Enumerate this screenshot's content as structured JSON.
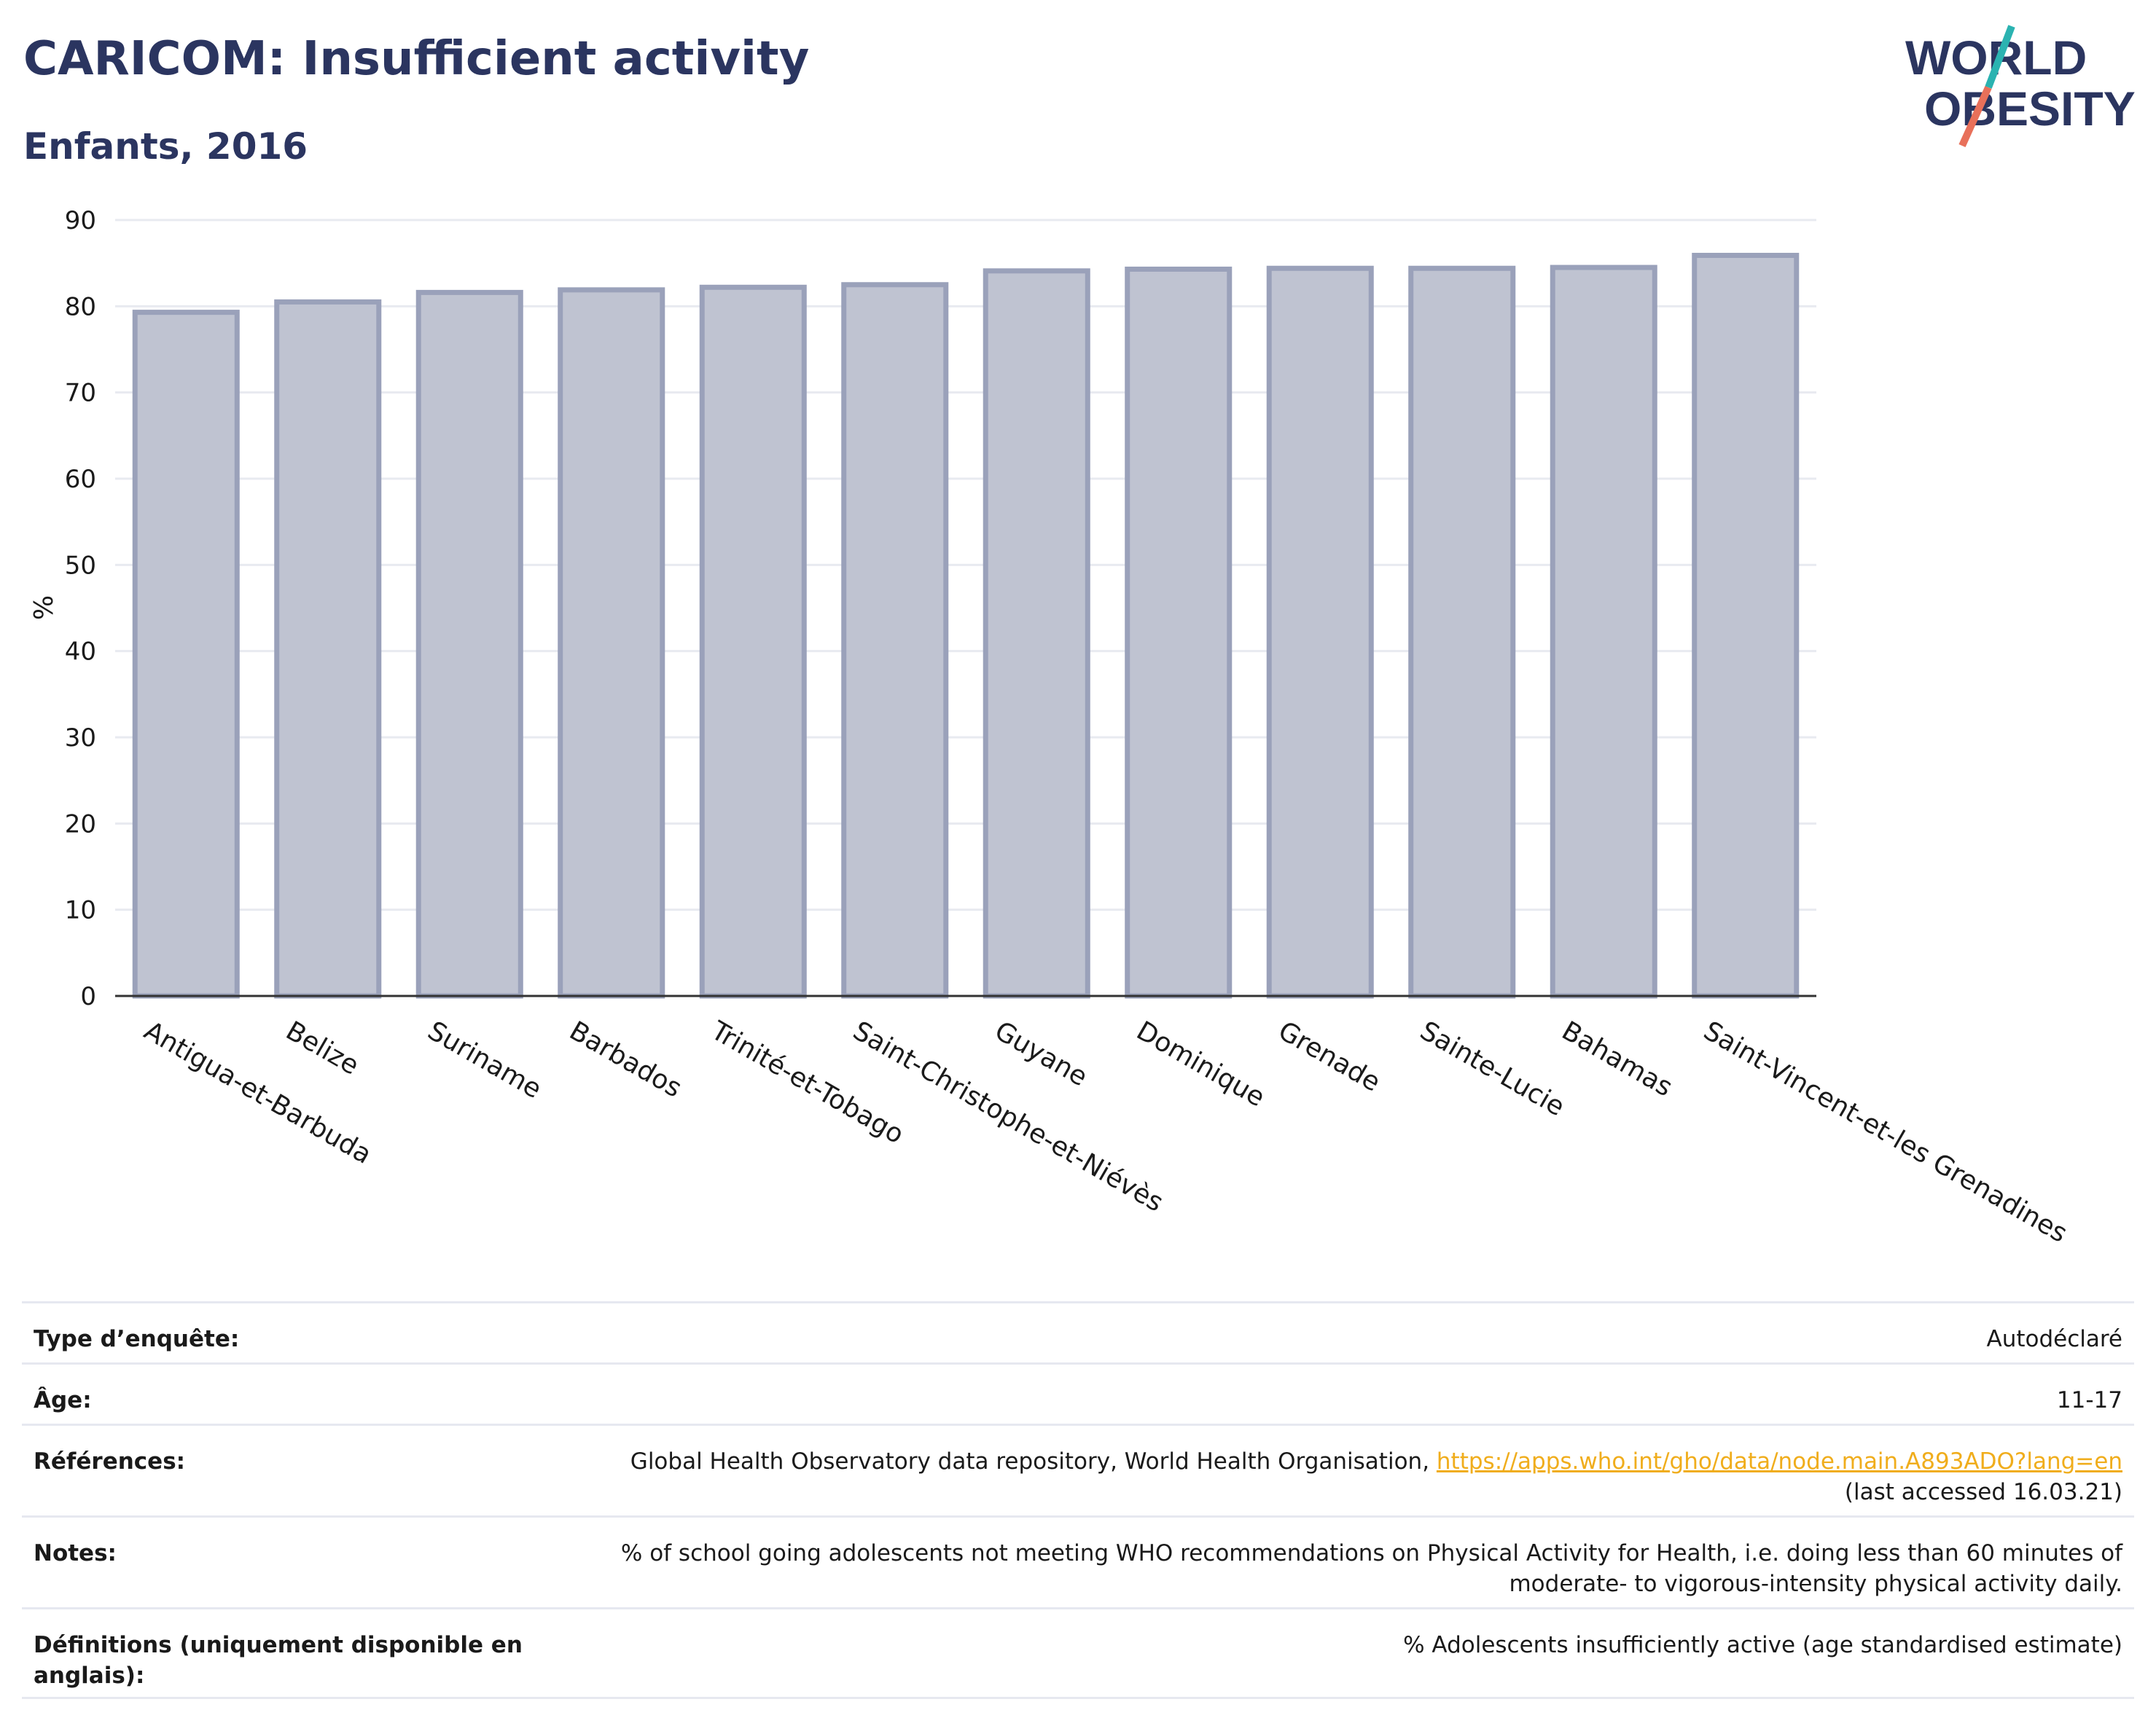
{
  "header": {
    "title": "CARICOM: Insufficient activity",
    "subtitle": "Enfants, 2016"
  },
  "logo": {
    "line1": "WORLD",
    "line2": "OBESITY",
    "colors": {
      "text": "#2b3560",
      "slash_top": "#2bb3b1",
      "slash_bottom": "#e8705a"
    }
  },
  "chart_data": {
    "type": "bar",
    "ylabel": "%",
    "xlabel": "",
    "ylim": [
      0,
      90
    ],
    "yticks": [
      0,
      10,
      20,
      30,
      40,
      50,
      60,
      70,
      80,
      90
    ],
    "grid": true,
    "categories": [
      "Antigua-et-Barbuda",
      "Belize",
      "Suriname",
      "Barbados",
      "Trinité-et-Tobago",
      "Saint-Christophe-et-Niévès",
      "Guyane",
      "Dominique",
      "Grenade",
      "Sainte-Lucie",
      "Bahamas",
      "Saint-Vincent-et-les Grenadines"
    ],
    "values": [
      79.3,
      80.5,
      81.6,
      81.9,
      82.2,
      82.5,
      84.1,
      84.3,
      84.4,
      84.4,
      84.5,
      85.9
    ],
    "colors": {
      "bar_fill": "#bfc3d1",
      "bar_stroke": "#9aa1ba",
      "grid": "#e8eaf0",
      "axis": "#333333"
    }
  },
  "info": {
    "rows": [
      {
        "label": "Type d’enquête:",
        "value": "Autodéclaré"
      },
      {
        "label": "Âge:",
        "value": "11-17"
      },
      {
        "label": "Références:",
        "value_prefix": "Global Health Observatory data repository, World Health Organisation, ",
        "link": "https://apps.who.int/gho/data/node.main.A893ADO?lang=en",
        "value_suffix": "(last accessed 16.03.21)"
      },
      {
        "label": "Notes:",
        "value_line1": "% of school going adolescents not meeting WHO recommendations on Physical Activity for Health, i.e. doing less than 60 minutes of",
        "value_line2": "moderate- to vigorous-intensity physical activity daily."
      },
      {
        "label": "Définitions (uniquement disponible en anglais):",
        "value": "% Adolescents insufficiently active (age standardised estimate)"
      }
    ]
  }
}
